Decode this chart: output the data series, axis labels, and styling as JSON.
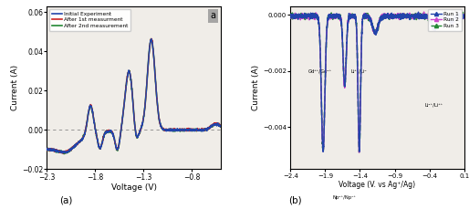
{
  "panel_a": {
    "title_label": "a",
    "xlabel": "Voltage (V)",
    "ylabel": "Current (A)",
    "xlim": [
      -2.3,
      -0.5
    ],
    "ylim": [
      -0.02,
      0.063
    ],
    "yticks": [
      -0.02,
      0.0,
      0.02,
      0.04,
      0.06
    ],
    "xticks": [
      -2.3,
      -1.8,
      -1.3,
      -0.8
    ],
    "legend": [
      "Initial Experiment",
      "After 1st measurment",
      "After 2nd measurement"
    ],
    "legend_colors": [
      "#2244aa",
      "#cc2222",
      "#228833"
    ],
    "background": "#f0ede8"
  },
  "panel_b": {
    "title_label": "b",
    "xlabel": "Voltage (V. vs Ag⁺/Ag)",
    "ylabel": "Current (A)",
    "xlim": [
      -2.4,
      0.1
    ],
    "ylim": [
      -0.0055,
      0.0003
    ],
    "yticks": [
      -0.004,
      -0.002,
      0.0
    ],
    "xticks": [
      -2.4,
      -1.9,
      -1.4,
      -0.9,
      -0.4,
      0.1
    ],
    "legend": [
      "Run 1",
      "Run 2",
      "Run 3"
    ],
    "legend_colors": [
      "#2244aa",
      "#cc44cc",
      "#228833"
    ],
    "background": "#f0ede8"
  },
  "caption_a": "(a)",
  "caption_b": "(b)"
}
